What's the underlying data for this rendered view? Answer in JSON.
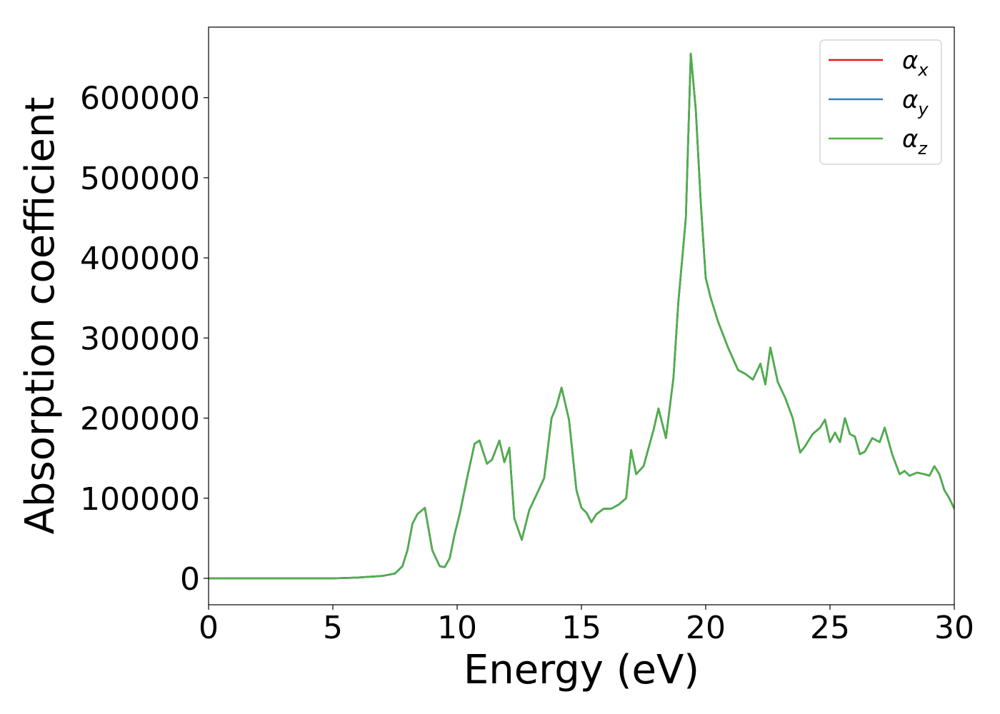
{
  "chart_data": {
    "type": "line",
    "title": "",
    "xlabel": "Energy (eV)",
    "ylabel": "Absorption coefficient",
    "xlim": [
      0,
      30
    ],
    "ylim": [
      -33000,
      688000
    ],
    "xticks": [
      0,
      5,
      10,
      15,
      20,
      25,
      30
    ],
    "xtick_labels": [
      "0",
      "5",
      "10",
      "15",
      "20",
      "25",
      "30"
    ],
    "yticks": [
      0,
      100000,
      200000,
      300000,
      400000,
      500000,
      600000
    ],
    "ytick_labels": [
      "0",
      "100000",
      "200000",
      "300000",
      "400000",
      "500000",
      "600000"
    ],
    "grid": false,
    "legend_position": "top-right",
    "x": [
      0,
      1,
      2,
      3,
      4,
      5,
      6,
      7,
      7.5,
      7.8,
      8.0,
      8.2,
      8.4,
      8.7,
      9.0,
      9.3,
      9.5,
      9.7,
      9.9,
      10.1,
      10.4,
      10.7,
      10.9,
      11.2,
      11.4,
      11.7,
      11.9,
      12.1,
      12.3,
      12.6,
      12.9,
      13.2,
      13.5,
      13.8,
      14.0,
      14.2,
      14.5,
      14.8,
      15.0,
      15.2,
      15.4,
      15.6,
      15.9,
      16.2,
      16.5,
      16.8,
      17.0,
      17.2,
      17.5,
      17.9,
      18.1,
      18.4,
      18.7,
      18.9,
      19.2,
      19.4,
      19.6,
      19.8,
      20.0,
      20.2,
      20.5,
      20.9,
      21.3,
      21.6,
      21.9,
      22.2,
      22.4,
      22.6,
      22.9,
      23.2,
      23.5,
      23.8,
      24.0,
      24.3,
      24.6,
      24.8,
      25.0,
      25.2,
      25.4,
      25.6,
      25.8,
      26.0,
      26.2,
      26.4,
      26.7,
      27.0,
      27.2,
      27.5,
      27.8,
      28.0,
      28.2,
      28.5,
      28.8,
      29.0,
      29.2,
      29.4,
      29.6,
      29.8,
      30
    ],
    "legend": [
      {
        "label": "α",
        "sub": "x",
        "color": "#e41a1c"
      },
      {
        "label": "α",
        "sub": "y",
        "color": "#377eb8"
      },
      {
        "label": "α",
        "sub": "z",
        "color": "#4daf4a"
      }
    ],
    "series": [
      {
        "name": "αx",
        "color": "#e41a1c",
        "values": [
          0,
          0,
          0,
          0,
          0,
          0,
          1000,
          3000,
          6000,
          15000,
          35000,
          68000,
          80000,
          88000,
          35000,
          15000,
          14000,
          25000,
          55000,
          80000,
          125000,
          168000,
          172000,
          143000,
          148000,
          172000,
          145000,
          163000,
          75000,
          48000,
          85000,
          105000,
          125000,
          200000,
          215000,
          238000,
          198000,
          110000,
          88000,
          82000,
          70000,
          80000,
          87000,
          87000,
          92000,
          100000,
          160000,
          130000,
          140000,
          185000,
          212000,
          175000,
          250000,
          345000,
          450000,
          655000,
          585000,
          470000,
          375000,
          350000,
          320000,
          288000,
          260000,
          255000,
          248000,
          268000,
          242000,
          288000,
          245000,
          225000,
          200000,
          157000,
          165000,
          180000,
          188000,
          198000,
          170000,
          182000,
          170000,
          200000,
          180000,
          177000,
          155000,
          158000,
          175000,
          170000,
          188000,
          155000,
          130000,
          134000,
          128000,
          132000,
          130000,
          128000,
          140000,
          130000,
          110000,
          100000,
          87000
        ]
      },
      {
        "name": "αy",
        "color": "#377eb8",
        "values": [
          0,
          0,
          0,
          0,
          0,
          0,
          1000,
          3000,
          6000,
          15000,
          35000,
          68000,
          80000,
          88000,
          35000,
          15000,
          14000,
          25000,
          55000,
          80000,
          125000,
          168000,
          172000,
          143000,
          148000,
          172000,
          145000,
          163000,
          75000,
          48000,
          85000,
          105000,
          125000,
          200000,
          215000,
          238000,
          198000,
          110000,
          88000,
          82000,
          70000,
          80000,
          87000,
          87000,
          92000,
          100000,
          160000,
          130000,
          140000,
          185000,
          212000,
          175000,
          250000,
          345000,
          450000,
          655000,
          585000,
          470000,
          375000,
          350000,
          320000,
          288000,
          260000,
          255000,
          248000,
          268000,
          242000,
          288000,
          245000,
          225000,
          200000,
          157000,
          165000,
          180000,
          188000,
          198000,
          170000,
          182000,
          170000,
          200000,
          180000,
          177000,
          155000,
          158000,
          175000,
          170000,
          188000,
          155000,
          130000,
          134000,
          128000,
          132000,
          130000,
          128000,
          140000,
          130000,
          110000,
          100000,
          87000
        ]
      },
      {
        "name": "αz",
        "color": "#4daf4a",
        "values": [
          0,
          0,
          0,
          0,
          0,
          0,
          1000,
          3000,
          6000,
          15000,
          35000,
          68000,
          80000,
          88000,
          35000,
          15000,
          14000,
          25000,
          55000,
          80000,
          125000,
          168000,
          172000,
          143000,
          148000,
          172000,
          145000,
          163000,
          75000,
          48000,
          85000,
          105000,
          125000,
          200000,
          215000,
          238000,
          198000,
          110000,
          88000,
          82000,
          70000,
          80000,
          87000,
          87000,
          92000,
          100000,
          160000,
          130000,
          140000,
          185000,
          212000,
          175000,
          250000,
          345000,
          450000,
          655000,
          585000,
          470000,
          375000,
          350000,
          320000,
          288000,
          260000,
          255000,
          248000,
          268000,
          242000,
          288000,
          245000,
          225000,
          200000,
          157000,
          165000,
          180000,
          188000,
          198000,
          170000,
          182000,
          170000,
          200000,
          180000,
          177000,
          155000,
          158000,
          175000,
          170000,
          188000,
          155000,
          130000,
          134000,
          128000,
          132000,
          130000,
          128000,
          140000,
          130000,
          110000,
          100000,
          87000
        ]
      }
    ]
  }
}
